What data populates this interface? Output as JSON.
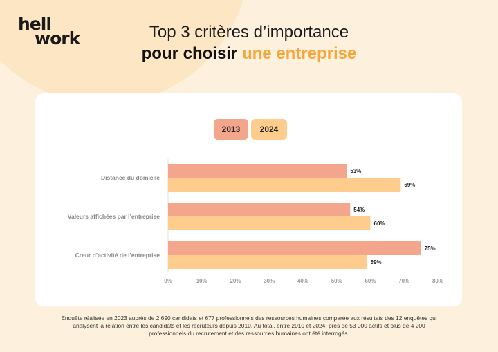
{
  "brand": {
    "logo_line1": "hell",
    "logo_line2": "work"
  },
  "header": {
    "title_line1": "Top 3 critères d’importance",
    "title_line2_bold": "pour choisir",
    "title_line2_accent": "une entreprise"
  },
  "colors": {
    "series_2013": "#f4a68c",
    "series_2024": "#fecc8c",
    "accent": "#f7a63b"
  },
  "legend": {
    "label_2013": "2013",
    "label_2024": "2024"
  },
  "chart_data": {
    "type": "bar",
    "orientation": "horizontal",
    "title": "Top 3 critères d’importance pour choisir une entreprise",
    "categories": [
      "Distance du domicile",
      "Valeurs affichées par l’entreprise",
      "Cœur d’activité de l’entreprise"
    ],
    "series": [
      {
        "name": "2013",
        "values": [
          53,
          54,
          75
        ],
        "labels": [
          "53%",
          "54%",
          "75%"
        ]
      },
      {
        "name": "2024",
        "values": [
          69,
          60,
          59
        ],
        "labels": [
          "69%",
          "60%",
          "59%"
        ]
      }
    ],
    "xlim": [
      0,
      80
    ],
    "xticks": [
      0,
      10,
      20,
      30,
      40,
      50,
      60,
      70,
      80
    ],
    "xtick_labels": [
      "0%",
      "10%",
      "20%",
      "30%",
      "40%",
      "50%",
      "60%",
      "70%",
      "80%"
    ],
    "xlabel": "",
    "ylabel": "",
    "legend_position": "top-center",
    "grid": false
  },
  "footnote": "Enquête réalisée en 2023 auprès de 2 690 candidats et 677 professionnels des ressources humaines comparée aux résultats des 12 enquêtes qui analysent la relation entre les candidats et les recruteurs depuis 2010. Au total, entre 2010 et 2024, près de 53 000 actifs et plus de 4 200 professionnels du recrutement et des ressources humaines ont été interrogés."
}
